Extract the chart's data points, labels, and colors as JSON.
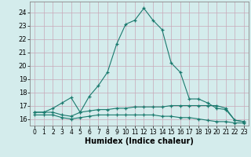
{
  "xlabel": "Humidex (Indice chaleur)",
  "background_color": "#d4ecec",
  "grid_color": "#c0d8d8",
  "line_color": "#1a7a6e",
  "xlim": [
    -0.5,
    23.5
  ],
  "ylim": [
    15.5,
    24.8
  ],
  "yticks": [
    16,
    17,
    18,
    19,
    20,
    21,
    22,
    23,
    24
  ],
  "xticks": [
    0,
    1,
    2,
    3,
    4,
    5,
    6,
    7,
    8,
    9,
    10,
    11,
    12,
    13,
    14,
    15,
    16,
    17,
    18,
    19,
    20,
    21,
    22,
    23
  ],
  "series": [
    {
      "x": [
        0,
        1,
        2,
        3,
        4,
        5,
        6,
        7,
        8,
        9,
        10,
        11,
        12,
        13,
        14,
        15,
        16,
        17,
        18,
        19,
        20,
        21,
        22,
        23
      ],
      "y": [
        16.5,
        16.5,
        16.8,
        17.2,
        17.6,
        16.5,
        17.7,
        18.5,
        19.5,
        21.6,
        23.1,
        23.4,
        24.3,
        23.4,
        22.7,
        20.2,
        19.5,
        17.5,
        17.5,
        17.2,
        16.8,
        16.7,
        15.9,
        15.8
      ]
    },
    {
      "x": [
        0,
        1,
        2,
        3,
        4,
        5,
        6,
        7,
        8,
        9,
        10,
        11,
        12,
        13,
        14,
        15,
        16,
        17,
        18,
        19,
        20,
        21,
        22,
        23
      ],
      "y": [
        16.5,
        16.5,
        16.5,
        16.3,
        16.2,
        16.5,
        16.6,
        16.7,
        16.7,
        16.8,
        16.8,
        16.9,
        16.9,
        16.9,
        16.9,
        17.0,
        17.0,
        17.0,
        17.0,
        17.0,
        17.0,
        16.8,
        15.9,
        15.8
      ]
    },
    {
      "x": [
        0,
        1,
        2,
        3,
        4,
        5,
        6,
        7,
        8,
        9,
        10,
        11,
        12,
        13,
        14,
        15,
        16,
        17,
        18,
        19,
        20,
        21,
        22,
        23
      ],
      "y": [
        16.3,
        16.3,
        16.3,
        16.1,
        16.0,
        16.1,
        16.2,
        16.3,
        16.3,
        16.3,
        16.3,
        16.3,
        16.3,
        16.3,
        16.2,
        16.2,
        16.1,
        16.1,
        16.0,
        15.9,
        15.8,
        15.8,
        15.7,
        15.7
      ]
    }
  ]
}
